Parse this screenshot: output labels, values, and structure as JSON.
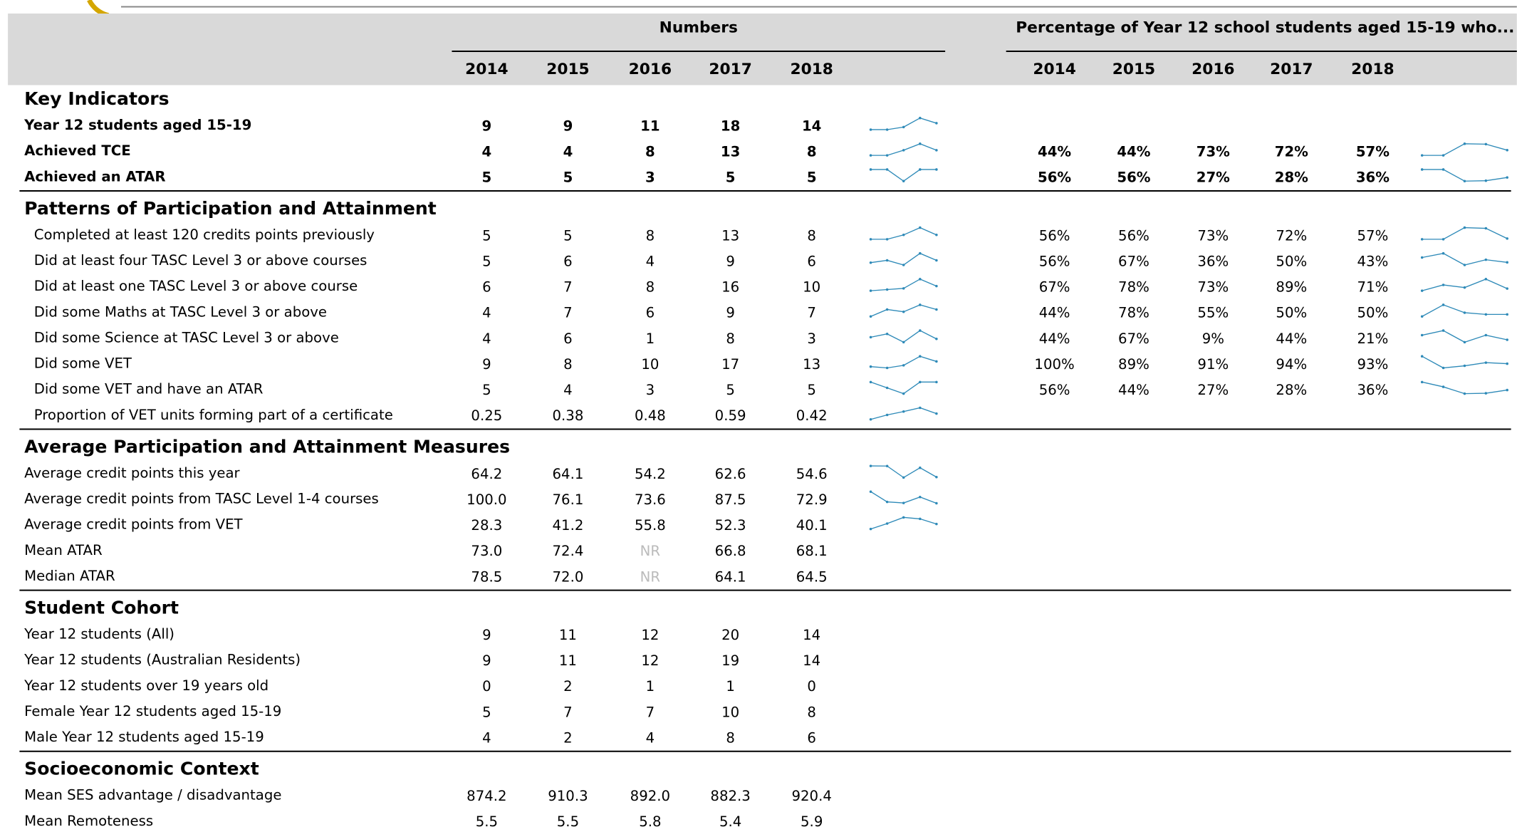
{
  "header": {
    "numbers_title": "Numbers",
    "percentage_title": "Percentage of Year 12 school students aged 15-19 who...",
    "years": [
      "2014",
      "2015",
      "2016",
      "2017",
      "2018"
    ]
  },
  "sections": [
    {
      "title": "Key Indicators",
      "bold_rows": true,
      "indent": false,
      "rows": [
        {
          "label": "Year 12 students aged 15-19",
          "numbers": [
            "9",
            "9",
            "11",
            "18",
            "14"
          ],
          "sparkline": true
        },
        {
          "label": "Achieved TCE",
          "numbers": [
            "4",
            "4",
            "8",
            "13",
            "8"
          ],
          "percentages": [
            "44%",
            "44%",
            "73%",
            "72%",
            "57%"
          ],
          "sparkline": true
        },
        {
          "label": "Achieved an ATAR",
          "numbers": [
            "5",
            "5",
            "3",
            "5",
            "5"
          ],
          "percentages": [
            "56%",
            "56%",
            "27%",
            "28%",
            "36%"
          ],
          "sparkline": true
        }
      ]
    },
    {
      "title": "Patterns of Participation and Attainment",
      "bold_rows": false,
      "indent": true,
      "rows": [
        {
          "label": "Completed at least 120 credits points previously",
          "numbers": [
            "5",
            "5",
            "8",
            "13",
            "8"
          ],
          "percentages": [
            "56%",
            "56%",
            "73%",
            "72%",
            "57%"
          ],
          "sparkline": true
        },
        {
          "label": "Did at least four TASC Level 3 or above courses",
          "numbers": [
            "5",
            "6",
            "4",
            "9",
            "6"
          ],
          "percentages": [
            "56%",
            "67%",
            "36%",
            "50%",
            "43%"
          ],
          "sparkline": true
        },
        {
          "label": "Did at least one TASC Level 3 or above course",
          "numbers": [
            "6",
            "7",
            "8",
            "16",
            "10"
          ],
          "percentages": [
            "67%",
            "78%",
            "73%",
            "89%",
            "71%"
          ],
          "sparkline": true
        },
        {
          "label": "Did some Maths at TASC Level 3 or above",
          "numbers": [
            "4",
            "7",
            "6",
            "9",
            "7"
          ],
          "percentages": [
            "44%",
            "78%",
            "55%",
            "50%",
            "50%"
          ],
          "sparkline": true
        },
        {
          "label": "Did some Science at TASC Level 3 or above",
          "numbers": [
            "4",
            "6",
            "1",
            "8",
            "3"
          ],
          "percentages": [
            "44%",
            "67%",
            "9%",
            "44%",
            "21%"
          ],
          "sparkline": true
        },
        {
          "label": "Did some VET",
          "numbers": [
            "9",
            "8",
            "10",
            "17",
            "13"
          ],
          "percentages": [
            "100%",
            "89%",
            "91%",
            "94%",
            "93%"
          ],
          "sparkline": true
        },
        {
          "label": "Did some VET and have an ATAR",
          "numbers": [
            "5",
            "4",
            "3",
            "5",
            "5"
          ],
          "percentages": [
            "56%",
            "44%",
            "27%",
            "28%",
            "36%"
          ],
          "sparkline": true
        },
        {
          "label": "Proportion of VET units forming part of a certificate",
          "numbers": [
            "0.25",
            "0.38",
            "0.48",
            "0.59",
            "0.42"
          ],
          "sparkline": true
        }
      ]
    },
    {
      "title": "Average Participation and Attainment Measures",
      "bold_rows": false,
      "indent": false,
      "rows": [
        {
          "label": "Average credit points this year",
          "numbers": [
            "64.2",
            "64.1",
            "54.2",
            "62.6",
            "54.6"
          ],
          "sparkline": true
        },
        {
          "label": "Average credit points from TASC Level 1-4 courses",
          "numbers": [
            "100.0",
            "76.1",
            "73.6",
            "87.5",
            "72.9"
          ],
          "sparkline": true
        },
        {
          "label": "Average credit points from VET",
          "numbers": [
            "28.3",
            "41.2",
            "55.8",
            "52.3",
            "40.1"
          ],
          "sparkline": true
        },
        {
          "label": "Mean ATAR",
          "numbers": [
            "73.0",
            "72.4",
            "NR",
            "66.8",
            "68.1"
          ],
          "sparkline": false
        },
        {
          "label": "Median ATAR",
          "numbers": [
            "78.5",
            "72.0",
            "NR",
            "64.1",
            "64.5"
          ],
          "sparkline": false
        }
      ]
    },
    {
      "title": "Student Cohort",
      "bold_rows": false,
      "indent": false,
      "rows": [
        {
          "label": "Year 12 students (All)",
          "numbers": [
            "9",
            "11",
            "12",
            "20",
            "14"
          ],
          "sparkline": false
        },
        {
          "label": "Year 12 students (Australian Residents)",
          "numbers": [
            "9",
            "11",
            "12",
            "19",
            "14"
          ],
          "sparkline": false
        },
        {
          "label": "Year 12 students over 19 years old",
          "numbers": [
            "0",
            "2",
            "1",
            "1",
            "0"
          ],
          "sparkline": false
        },
        {
          "label": "Female Year 12 students aged 15-19",
          "numbers": [
            "5",
            "7",
            "7",
            "10",
            "8"
          ],
          "sparkline": false
        },
        {
          "label": "Male Year 12 students aged 15-19",
          "numbers": [
            "4",
            "2",
            "4",
            "8",
            "6"
          ],
          "sparkline": false
        }
      ]
    },
    {
      "title": "Socioeconomic Context",
      "bold_rows": false,
      "indent": false,
      "rows": [
        {
          "label": "Mean SES advantage / disadvantage",
          "numbers": [
            "874.2",
            "910.3",
            "892.0",
            "882.3",
            "920.4"
          ],
          "sparkline": false
        },
        {
          "label": "Mean Remoteness",
          "numbers": [
            "5.5",
            "5.5",
            "5.8",
            "5.4",
            "5.9"
          ],
          "sparkline": false
        }
      ]
    }
  ]
}
